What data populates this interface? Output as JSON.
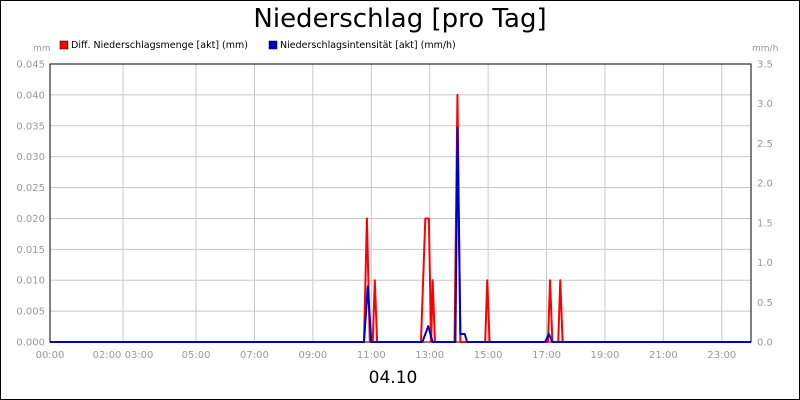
{
  "chart_data": {
    "type": "line",
    "title": "Niederschlag [pro Tag]",
    "date_label": "04.10",
    "y_left_unit": "mm",
    "y_right_unit": "mm/h",
    "y_left_range": [
      0,
      0.045
    ],
    "y_right_range": [
      0,
      3.5
    ],
    "y_left_ticks": [
      "0.000",
      "0.005",
      "0.010",
      "0.015",
      "0.020",
      "0.025",
      "0.030",
      "0.035",
      "0.040",
      "0.045"
    ],
    "y_right_ticks": [
      "0.0",
      "0.5",
      "1.0",
      "1.5",
      "2.0",
      "2.5",
      "3.0",
      "3.5"
    ],
    "x_range_hours": [
      0,
      24
    ],
    "x_ticks": [
      {
        "hour": 0,
        "label": "00:00"
      },
      {
        "hour": 2.5,
        "label": "02:00 03:00"
      },
      {
        "hour": 5,
        "label": "05:00"
      },
      {
        "hour": 7,
        "label": "07:00"
      },
      {
        "hour": 9,
        "label": "09:00"
      },
      {
        "hour": 11,
        "label": "11:00"
      },
      {
        "hour": 13,
        "label": "13:00"
      },
      {
        "hour": 15,
        "label": "15:00"
      },
      {
        "hour": 17,
        "label": "17:00"
      },
      {
        "hour": 19,
        "label": "19:00"
      },
      {
        "hour": 21,
        "label": "21:00"
      },
      {
        "hour": 23,
        "label": "23:00"
      }
    ],
    "grid": true,
    "legend_position": "top",
    "series": [
      {
        "name": "Diff. Niederschlagsmenge [akt] (mm)",
        "axis": "left",
        "color": "#ff0000",
        "points": [
          [
            0,
            0
          ],
          [
            10.75,
            0
          ],
          [
            10.85,
            0.02
          ],
          [
            10.95,
            0
          ],
          [
            11.05,
            0
          ],
          [
            11.12,
            0.01
          ],
          [
            11.2,
            0
          ],
          [
            12.7,
            0
          ],
          [
            12.85,
            0.02
          ],
          [
            12.97,
            0.02
          ],
          [
            13.05,
            0
          ],
          [
            13.1,
            0.01
          ],
          [
            13.18,
            0
          ],
          [
            13.85,
            0
          ],
          [
            13.95,
            0.04
          ],
          [
            14.05,
            0
          ],
          [
            14.9,
            0
          ],
          [
            14.97,
            0.01
          ],
          [
            15.05,
            0
          ],
          [
            17.05,
            0
          ],
          [
            17.12,
            0.01
          ],
          [
            17.2,
            0
          ],
          [
            17.4,
            0
          ],
          [
            17.47,
            0.01
          ],
          [
            17.55,
            0
          ],
          [
            24,
            0
          ]
        ]
      },
      {
        "name": "Niederschlagsintensität [akt] (mm/h)",
        "axis": "right",
        "color": "#0000cc",
        "points": [
          [
            0,
            0
          ],
          [
            10.75,
            0
          ],
          [
            10.88,
            0.7
          ],
          [
            11.0,
            0
          ],
          [
            12.75,
            0
          ],
          [
            12.95,
            0.2
          ],
          [
            13.1,
            0
          ],
          [
            13.88,
            0
          ],
          [
            13.95,
            2.7
          ],
          [
            14.05,
            0.1
          ],
          [
            14.2,
            0.1
          ],
          [
            14.28,
            0
          ],
          [
            16.95,
            0
          ],
          [
            17.08,
            0.1
          ],
          [
            17.2,
            0
          ],
          [
            24,
            0
          ]
        ]
      }
    ]
  }
}
